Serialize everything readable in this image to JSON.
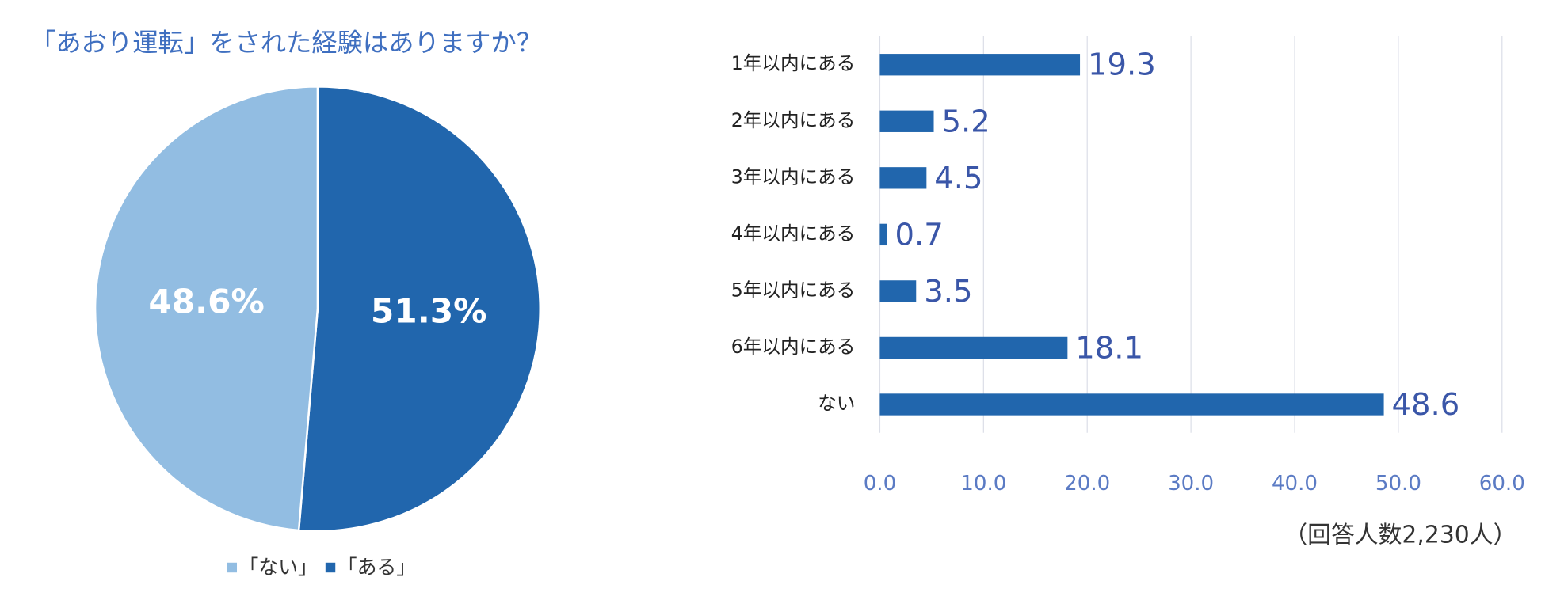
{
  "chart_data": [
    {
      "type": "pie",
      "title": "「あおり運転」をされた経験はありますか？",
      "categories": [
        "「ない」",
        "「ある」"
      ],
      "values": [
        48.6,
        51.3
      ],
      "value_labels": [
        "48.6%",
        "51.3%"
      ],
      "colors": [
        "#92bde2",
        "#2166ad"
      ]
    },
    {
      "type": "bar",
      "orientation": "horizontal",
      "categories": [
        "1年以内にある",
        "2年以内にある",
        "3年以内にある",
        "4年以内にある",
        "5年以内にある",
        "6年以内にある",
        "ない"
      ],
      "values": [
        19.3,
        5.2,
        4.5,
        0.7,
        3.5,
        18.1,
        48.6
      ],
      "color": "#2166ad",
      "xlim": [
        0,
        60
      ],
      "xticks": [
        {
          "value": 0,
          "label": "0.0"
        },
        {
          "value": 10,
          "label": "10.0"
        },
        {
          "value": 20,
          "label": "20.0"
        },
        {
          "value": 30,
          "label": "30.0"
        },
        {
          "value": 40,
          "label": "40.0"
        },
        {
          "value": 50,
          "label": "50.0"
        },
        {
          "value": 60,
          "label": "60.0"
        }
      ],
      "grid": true,
      "annotation": "（回答人数2,230人）"
    }
  ]
}
